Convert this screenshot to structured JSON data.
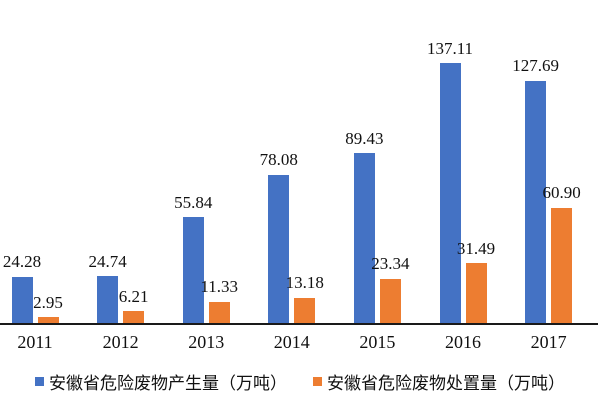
{
  "chart_data": {
    "type": "bar",
    "title": "",
    "xlabel": "",
    "ylabel": "",
    "categories": [
      "2011",
      "2012",
      "2013",
      "2014",
      "2015",
      "2016",
      "2017"
    ],
    "series": [
      {
        "name": "安徽省危险废物产生量（万吨）",
        "key": "production",
        "color": "#4472C4",
        "values": [
          24.28,
          24.74,
          55.84,
          78.08,
          89.43,
          137.11,
          127.69
        ]
      },
      {
        "name": "安徽省危险废物处置量（万吨）",
        "key": "disposal",
        "color": "#ED7D31",
        "values": [
          2.95,
          6.21,
          11.33,
          13.18,
          23.34,
          31.49,
          60.9
        ]
      }
    ],
    "ylim": [
      0,
      150
    ],
    "grid": false,
    "y_axis_visible": false,
    "legend_position": "bottom",
    "data_labels": "above-bars, two decimals",
    "axis_line_color": "#1a1a1a",
    "label_text_color": "#111111",
    "background": "#ffffff"
  }
}
